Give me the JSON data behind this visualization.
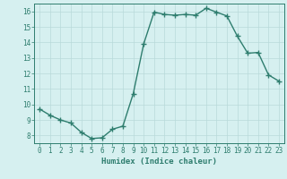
{
  "x": [
    0,
    1,
    2,
    3,
    4,
    5,
    6,
    7,
    8,
    9,
    10,
    11,
    12,
    13,
    14,
    15,
    16,
    17,
    18,
    19,
    20,
    21,
    22,
    23
  ],
  "y": [
    9.7,
    9.3,
    9.0,
    8.8,
    8.2,
    7.8,
    7.85,
    8.4,
    8.6,
    10.7,
    13.9,
    15.95,
    15.8,
    15.75,
    15.8,
    15.75,
    16.2,
    15.95,
    15.7,
    14.4,
    13.3,
    13.35,
    11.9,
    11.5
  ],
  "line_color": "#2e7d6e",
  "marker": "+",
  "marker_size": 4,
  "bg_color": "#d6f0f0",
  "grid_color": "#b8dada",
  "xlabel": "Humidex (Indice chaleur)",
  "xlim": [
    -0.5,
    23.5
  ],
  "ylim": [
    7.5,
    16.5
  ],
  "yticks": [
    8,
    9,
    10,
    11,
    12,
    13,
    14,
    15,
    16
  ],
  "xticks": [
    0,
    1,
    2,
    3,
    4,
    5,
    6,
    7,
    8,
    9,
    10,
    11,
    12,
    13,
    14,
    15,
    16,
    17,
    18,
    19,
    20,
    21,
    22,
    23
  ],
  "tick_color": "#2e7d6e",
  "label_fontsize": 6.5,
  "tick_fontsize": 5.5,
  "linewidth": 1.0,
  "markeredgewidth": 1.0
}
